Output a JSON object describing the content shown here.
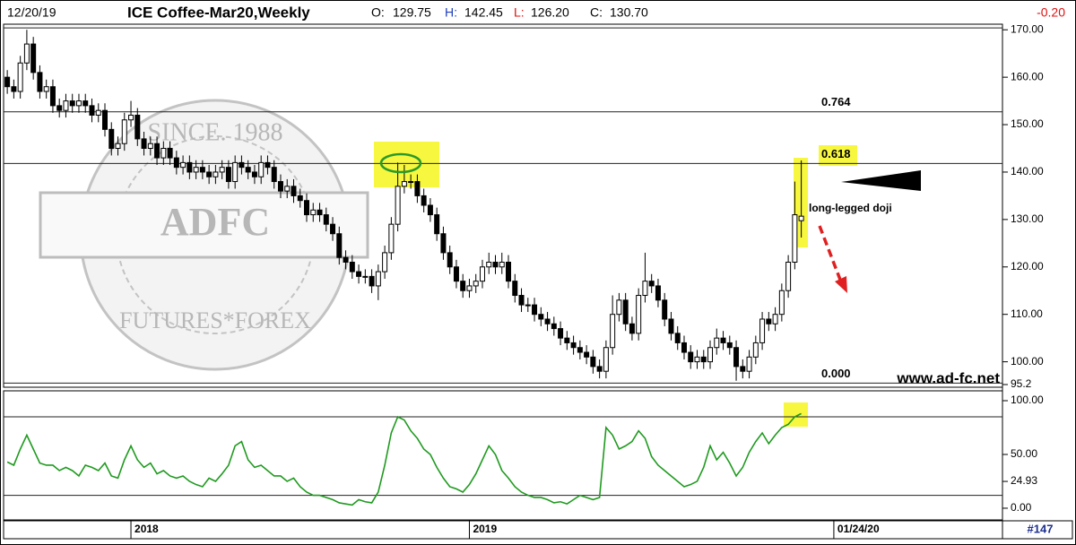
{
  "header": {
    "date": "12/20/19",
    "title": "ICE Coffee-Mar20,Weekly",
    "ohlc": [
      {
        "label": "O:",
        "value": "129.75"
      },
      {
        "label": "H:",
        "value": "142.45"
      },
      {
        "label": "L:",
        "value": "126.20"
      },
      {
        "label": "C:",
        "value": "130.70"
      }
    ],
    "change": "-0.20"
  },
  "watermark": {
    "center": "ADFC",
    "ring_top": "SINCE. 1988",
    "ring_bottom": "FUTURES*FOREX"
  },
  "footer": {
    "bar_count": "#147"
  },
  "chart_data": [
    {
      "type": "candlestick",
      "categories": [
        null,
        null,
        null,
        null,
        null,
        null,
        null,
        null,
        null,
        null,
        null,
        null,
        null,
        null,
        null,
        null,
        null,
        null,
        null,
        "2018",
        null,
        null,
        null,
        null,
        null,
        null,
        null,
        null,
        null,
        null,
        null,
        null,
        null,
        null,
        null,
        null,
        null,
        null,
        null,
        null,
        null,
        null,
        null,
        null,
        null,
        null,
        null,
        null,
        null,
        null,
        null,
        null,
        null,
        null,
        null,
        null,
        null,
        null,
        null,
        null,
        null,
        null,
        null,
        null,
        null,
        null,
        null,
        null,
        null,
        null,
        null,
        "2019",
        null,
        null,
        null,
        null,
        null,
        null,
        null,
        null,
        null,
        null,
        null,
        null,
        null,
        null,
        null,
        null,
        null,
        null,
        null,
        null,
        null,
        null,
        null,
        null,
        null,
        null,
        null,
        null,
        null,
        null,
        null,
        null,
        null,
        null,
        null,
        null,
        null,
        null,
        null,
        null,
        null,
        null,
        null,
        null,
        null,
        null,
        null,
        null,
        null,
        null,
        null,
        null,
        null,
        null,
        null,
        "01/24/20",
        null,
        null,
        null,
        null,
        null,
        null,
        null,
        null,
        null,
        null,
        null,
        null,
        null,
        null,
        null,
        null,
        null,
        null,
        null,
        null,
        null,
        null,
        null,
        null,
        null
      ],
      "open": [
        160,
        158,
        157,
        163,
        167,
        161,
        157,
        158,
        154,
        153,
        155,
        154,
        155,
        154,
        152,
        153,
        149,
        145,
        146,
        151,
        152,
        147,
        145,
        146,
        143,
        145,
        143,
        141,
        142,
        140,
        141,
        140,
        139,
        140,
        141,
        138,
        142,
        141,
        140,
        139,
        142,
        141,
        138,
        136,
        137,
        135,
        134,
        131,
        132,
        131,
        129,
        127,
        122,
        121,
        119,
        118,
        118,
        116,
        119,
        123,
        129,
        137,
        138,
        138,
        135,
        133,
        131,
        127,
        123,
        120,
        117,
        115,
        116,
        117,
        120,
        121,
        120,
        121,
        117,
        114,
        112,
        112,
        110,
        109,
        108,
        107,
        105,
        104,
        103,
        102,
        101,
        99,
        98,
        103,
        110,
        113,
        108,
        106,
        114,
        117,
        116,
        113,
        109,
        106,
        104,
        102,
        100,
        101,
        100,
        103,
        105,
        104,
        103,
        99,
        98,
        101,
        104,
        109,
        108,
        110,
        115,
        121,
        129.75,
        null,
        null,
        null,
        null,
        null,
        null,
        null,
        null,
        null,
        null,
        null,
        null,
        null,
        null,
        null,
        null,
        null,
        null,
        null,
        null,
        null,
        null,
        null,
        null,
        null,
        null,
        null,
        null,
        null,
        null
      ],
      "high": [
        161.5,
        159.5,
        164.5,
        170,
        168.5,
        162.5,
        159.5,
        159.5,
        155.5,
        156.5,
        156.5,
        156.5,
        156.5,
        155.5,
        154.5,
        154.5,
        150.5,
        147.5,
        152.5,
        155,
        153.5,
        148.5,
        147.5,
        147.5,
        146.5,
        146.5,
        144.5,
        143.5,
        143.5,
        142.5,
        142.5,
        141.5,
        141.5,
        142.5,
        142.5,
        143.5,
        143.5,
        142.5,
        141.5,
        143.5,
        143.5,
        142.5,
        139.5,
        138.5,
        138.5,
        136.5,
        135.5,
        133.5,
        133.5,
        132.5,
        130.5,
        128.5,
        123.5,
        122.5,
        120.5,
        119.5,
        119.5,
        120.5,
        124.5,
        130.5,
        142,
        141.5,
        139.5,
        139.5,
        136.5,
        134.5,
        132.5,
        128.5,
        124.5,
        121.5,
        118.5,
        117.5,
        118.5,
        121.5,
        123,
        122.5,
        123,
        122.5,
        118.5,
        115.5,
        113.5,
        113.5,
        111.5,
        110.5,
        109.5,
        108.5,
        106.5,
        105.5,
        104.5,
        103.5,
        102.5,
        100.5,
        104.5,
        114,
        114.5,
        114.5,
        109.5,
        115.5,
        123,
        118.5,
        117.5,
        114.5,
        110.5,
        107.5,
        105.5,
        103.5,
        102.5,
        102.5,
        104.5,
        107,
        106.5,
        105.5,
        104.5,
        100.5,
        102.5,
        105.5,
        110.5,
        110.5,
        111.5,
        116.5,
        122.5,
        138,
        142.45,
        null,
        null,
        null,
        null,
        null,
        null,
        null,
        null,
        null,
        null,
        null,
        null,
        null,
        null,
        null,
        null,
        null,
        null,
        null,
        null,
        null,
        null,
        null,
        null,
        null,
        null,
        null,
        null,
        null,
        null
      ],
      "low": [
        156.5,
        155.5,
        155.5,
        161.5,
        159.5,
        155.5,
        155.5,
        152.5,
        151.5,
        151.5,
        152.5,
        152.5,
        152.5,
        150.5,
        150.5,
        147.5,
        143.5,
        143.5,
        144.5,
        149.5,
        145.5,
        143.5,
        143.5,
        141.5,
        141.5,
        141.5,
        139.5,
        139.5,
        138.5,
        138.5,
        138.5,
        137.5,
        137.5,
        138.5,
        136.5,
        136.5,
        139.5,
        138.5,
        137.5,
        137.5,
        139.5,
        136.5,
        134.5,
        134.5,
        133.5,
        132.5,
        129.5,
        129.5,
        129.5,
        127.5,
        125.5,
        120.5,
        119.5,
        117.5,
        116.5,
        116.5,
        114.5,
        113,
        117.5,
        121.5,
        127.5,
        135.5,
        136.5,
        133.5,
        131.5,
        129.5,
        125.5,
        121.5,
        118.5,
        115.5,
        113.5,
        113.5,
        114.5,
        115.5,
        118.5,
        118.5,
        118.5,
        115.5,
        112.5,
        110.5,
        110.5,
        108.5,
        107.5,
        106.5,
        105.5,
        103.5,
        102.5,
        101.5,
        100.5,
        99.5,
        97.5,
        96.5,
        96.5,
        101.5,
        108.5,
        106.5,
        104.5,
        104.5,
        112.5,
        114.5,
        111.5,
        107.5,
        104.5,
        102.5,
        100.5,
        98.5,
        98.5,
        98.5,
        98.5,
        101.5,
        102.5,
        101.5,
        96,
        96.5,
        96.5,
        99.5,
        102.5,
        106.5,
        106.5,
        108.5,
        113.5,
        119.5,
        126.2,
        null,
        null,
        null,
        null,
        null,
        null,
        null,
        null,
        null,
        null,
        null,
        null,
        null,
        null,
        null,
        null,
        null,
        null,
        null,
        null,
        null,
        null,
        null,
        null,
        null,
        null,
        null,
        null,
        null,
        null
      ],
      "close": [
        158,
        157,
        163,
        167,
        161,
        157,
        158,
        154,
        153,
        155,
        154,
        155,
        154,
        152,
        153,
        149,
        145,
        146,
        151,
        152,
        147,
        145,
        146,
        143,
        145,
        143,
        141,
        142,
        140,
        141,
        140,
        139,
        140,
        141,
        138,
        142,
        141,
        140,
        139,
        142,
        141,
        138,
        136,
        137,
        135,
        134,
        131,
        132,
        131,
        129,
        127,
        122,
        121,
        119,
        118,
        118,
        116,
        119,
        123,
        129,
        137,
        138,
        138,
        135,
        133,
        131,
        127,
        123,
        120,
        117,
        115,
        116,
        117,
        120,
        121,
        120,
        121,
        117,
        114,
        112,
        112,
        110,
        109,
        108,
        107,
        105,
        104,
        103,
        102,
        101,
        99,
        98,
        103,
        110,
        113,
        108,
        106,
        114,
        117,
        116,
        113,
        109,
        106,
        104,
        102,
        100,
        101,
        100,
        103,
        105,
        104,
        103,
        99,
        98,
        101,
        104,
        109,
        108,
        110,
        115,
        121,
        131,
        130.7,
        null,
        null,
        null,
        null,
        null,
        null,
        null,
        null,
        null,
        null,
        null,
        null,
        null,
        null,
        null,
        null,
        null,
        null,
        null,
        null,
        null,
        null,
        null,
        null,
        null,
        null,
        null,
        null,
        null,
        null
      ],
      "ylim": [
        95.2,
        172.5
      ],
      "yticks": [
        95.2,
        {
          "value": 100,
          "label": "100.00"
        },
        {
          "value": 110,
          "label": "110.00"
        },
        {
          "value": 120,
          "label": "120.00"
        },
        {
          "value": 130,
          "label": "130.00"
        },
        {
          "value": 140,
          "label": "140.00"
        },
        {
          "value": 150,
          "label": "150.00"
        },
        {
          "value": 160,
          "label": "160.00"
        },
        {
          "value": 170,
          "label": "170.00"
        }
      ],
      "levels": [
        170.4,
        152.7,
        141.8,
        95.5
      ],
      "level_labels": [
        null,
        "0.764",
        "0.618",
        "0.000"
      ],
      "annotations": {
        "doji": "long-legged doji",
        "website": "www.ad-fc.net"
      }
    },
    {
      "type": "line",
      "color": "#1f9a1f",
      "values": [
        43,
        40,
        55,
        68,
        55,
        42,
        40,
        40,
        35,
        38,
        35,
        30,
        40,
        38,
        35,
        42,
        30,
        28,
        45,
        58,
        45,
        38,
        42,
        32,
        35,
        30,
        28,
        30,
        25,
        22,
        20,
        28,
        25,
        32,
        40,
        58,
        62,
        45,
        38,
        40,
        35,
        30,
        30,
        25,
        28,
        20,
        15,
        12,
        12,
        10,
        8,
        5,
        4,
        3,
        8,
        6,
        5,
        15,
        40,
        70,
        85,
        82,
        72,
        65,
        55,
        50,
        38,
        28,
        20,
        18,
        15,
        22,
        32,
        45,
        58,
        50,
        35,
        28,
        20,
        15,
        12,
        10,
        10,
        8,
        5,
        6,
        4,
        8,
        12,
        10,
        8,
        10,
        75,
        68,
        55,
        58,
        62,
        72,
        65,
        48,
        40,
        35,
        30,
        25,
        20,
        22,
        25,
        38,
        58,
        45,
        52,
        42,
        30,
        38,
        52,
        62,
        70,
        60,
        68,
        75,
        78,
        85,
        88,
        null,
        null,
        null,
        null,
        null,
        null,
        null,
        null,
        null,
        null,
        null,
        null,
        null,
        null,
        null,
        null,
        null,
        null,
        null,
        null,
        null,
        null,
        null,
        null,
        null,
        null,
        null,
        null,
        null,
        null
      ],
      "ylim": [
        -9.2,
        107.5
      ],
      "yticks": [
        {
          "value": 0,
          "label": "0.00"
        },
        24.93,
        {
          "value": 50,
          "label": "50.00"
        },
        {
          "value": 100,
          "label": "100.00"
        }
      ],
      "levels": [
        85,
        12
      ]
    }
  ]
}
